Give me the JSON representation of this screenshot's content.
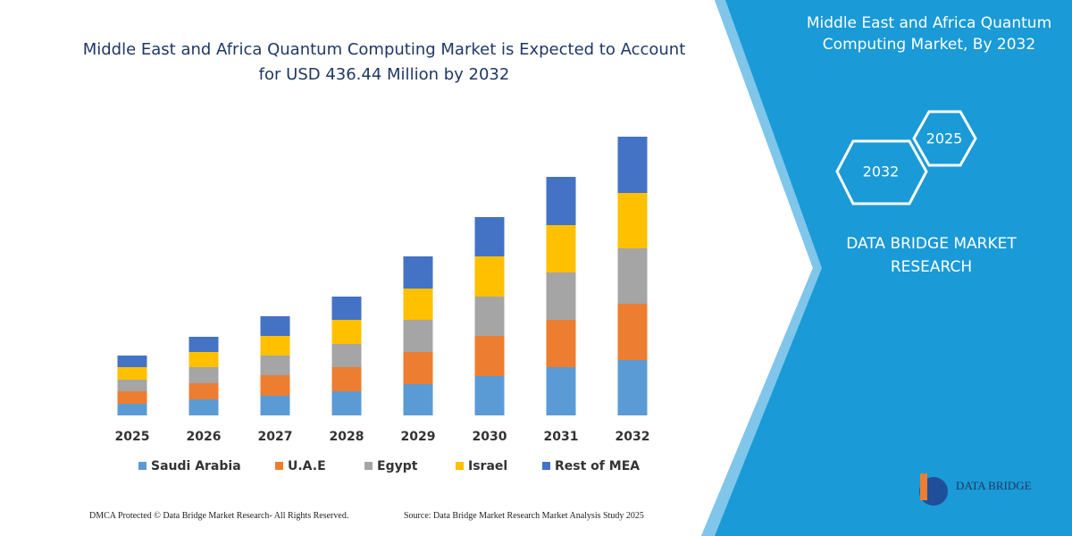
{
  "chart_data": {
    "type": "stacked-bar",
    "title": "Middle East and Africa Quantum Computing Market is Expected to Account for USD 436.44 Million by 2032",
    "categories": [
      "2025",
      "2026",
      "2027",
      "2028",
      "2029",
      "2030",
      "2031",
      "2032"
    ],
    "series": [
      {
        "name": "Saudi Arabia",
        "color": "#5b9bd5",
        "values": [
          13,
          18,
          22,
          27,
          35,
          44,
          54,
          62
        ]
      },
      {
        "name": "U.A.E",
        "color": "#ed7d31",
        "values": [
          14,
          18,
          23,
          27,
          36,
          45,
          53,
          63
        ]
      },
      {
        "name": "Egypt",
        "color": "#a5a5a5",
        "values": [
          13,
          18,
          22,
          26,
          36,
          44,
          53,
          62
        ]
      },
      {
        "name": "Israel",
        "color": "#ffc000",
        "values": [
          14,
          17,
          22,
          27,
          35,
          45,
          53,
          62
        ]
      },
      {
        "name": "Rest of MEA",
        "color": "#4472c4",
        "values": [
          13,
          17,
          22,
          26,
          36,
          44,
          54,
          63
        ]
      }
    ]
  },
  "panel": {
    "title": "Middle East and Africa Quantum Computing Market, By 2032",
    "hex_labels": [
      "2025",
      "2032"
    ],
    "brand": "DATA BRIDGE MARKET RESEARCH",
    "logo": "DATA BRIDGE"
  },
  "footer": {
    "left": "DMCA Protected © Data Bridge Market Research- All Rights Reserved.",
    "right": "Source: Data Bridge Market Research Market Analysis Study 2025"
  }
}
